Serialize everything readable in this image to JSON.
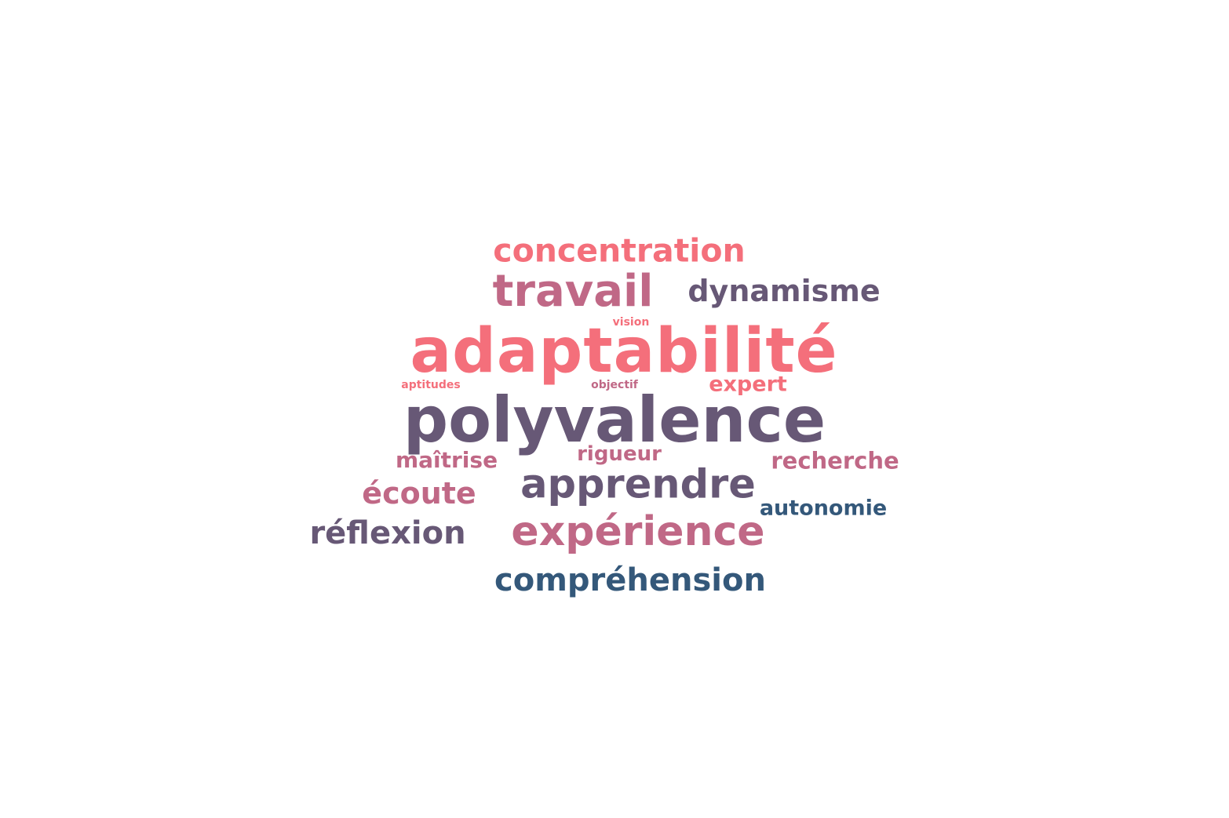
{
  "colors": {
    "coral": "#f46f7b",
    "rose": "#c06886",
    "purple": "#675876",
    "slate_blue": "#34587a"
  },
  "words": {
    "adaptabilite": {
      "text": "adaptabilité",
      "color": "#f46f7b"
    },
    "polyvalence": {
      "text": "polyvalence",
      "color": "#675876"
    },
    "concentration": {
      "text": "concentration",
      "color": "#f46f7b"
    },
    "travail": {
      "text": "travail",
      "color": "#c06886"
    },
    "dynamisme": {
      "text": "dynamisme",
      "color": "#675876"
    },
    "apprendre": {
      "text": "apprendre",
      "color": "#675876"
    },
    "experience": {
      "text": "expérience",
      "color": "#c06886"
    },
    "reflexion": {
      "text": "réflexion",
      "color": "#675876"
    },
    "ecoute": {
      "text": "écoute",
      "color": "#c06886"
    },
    "comprehension": {
      "text": "compréhension",
      "color": "#34587a"
    },
    "autonomie": {
      "text": "autonomie",
      "color": "#34587a"
    },
    "recherche": {
      "text": "recherche",
      "color": "#c06886"
    },
    "maitrise": {
      "text": "maîtrise",
      "color": "#c06886"
    },
    "rigueur": {
      "text": "rigueur",
      "color": "#c06886"
    },
    "expert": {
      "text": "expert",
      "color": "#f46f7b"
    },
    "aptitudes": {
      "text": "aptitudes",
      "color": "#f46f7b"
    },
    "objectif": {
      "text": "objectif",
      "color": "#c06886"
    },
    "vision": {
      "text": "vision",
      "color": "#f46f7b"
    }
  }
}
